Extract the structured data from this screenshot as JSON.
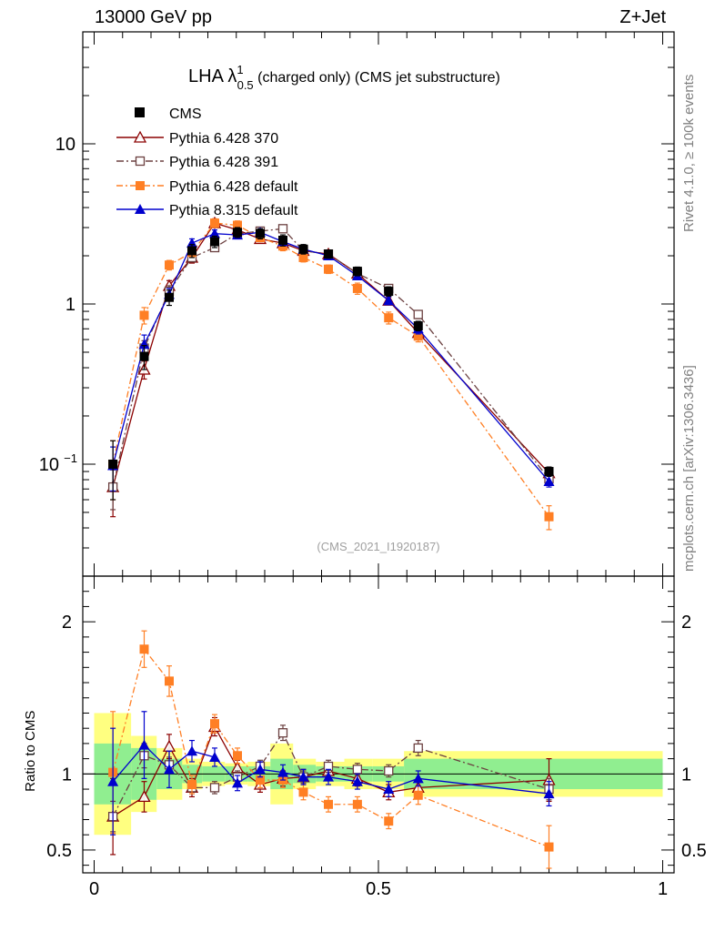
{
  "header": {
    "energy_label": "13000 GeV pp",
    "process_label": "Z+Jet"
  },
  "side_labels": {
    "rivet": "Rivet 4.1.0, ≥ 100k events",
    "mcplots": "mcplots.cern.ch [arXiv:1306.3436]"
  },
  "chart_data": {
    "type": "line",
    "title_main": "LHA λ",
    "title_sup": "1",
    "title_sub": "0.5",
    "title_rest": " (charged only) (CMS jet substructure)",
    "watermark": "(CMS_2021_I1920187)",
    "yscale": "log",
    "ylim": [
      0.02,
      50
    ],
    "xlim": [
      -0.02,
      1.02
    ],
    "ytick_labels": {
      "major_10": "10",
      "major_1": "1",
      "major_01": "10",
      "major_01_exp": "−1"
    },
    "ratio_ylabel": "Ratio to CMS",
    "ratio_ylim": [
      0.35,
      2.3
    ],
    "ratio_ticks": [
      "0.5",
      "1",
      "2"
    ],
    "xtick_labels": [
      "0",
      "0.5",
      "1"
    ],
    "x_centers": [
      0.033,
      0.088,
      0.132,
      0.172,
      0.212,
      0.252,
      0.292,
      0.332,
      0.368,
      0.412,
      0.463,
      0.518,
      0.57,
      0.8
    ],
    "x_edges": [
      0.0,
      0.065,
      0.11,
      0.155,
      0.19,
      0.23,
      0.27,
      0.31,
      0.35,
      0.39,
      0.44,
      0.49,
      0.545,
      0.6,
      1.0
    ],
    "data": {
      "name": "CMS",
      "values": [
        0.1,
        0.47,
        1.1,
        2.15,
        2.45,
        2.8,
        2.75,
        2.5,
        2.2,
        2.05,
        1.6,
        1.2,
        0.73,
        0.09
      ],
      "errors": [
        0.04,
        0.08,
        0.12,
        0.2,
        0.2,
        0.2,
        0.2,
        0.2,
        0.15,
        0.12,
        0.1,
        0.08,
        0.05,
        0.006
      ]
    },
    "ratio_bands": {
      "yellow_halfwidth": [
        0.4,
        0.25,
        0.17,
        0.1,
        0.08,
        0.07,
        0.08,
        0.2,
        0.1,
        0.08,
        0.1,
        0.1,
        0.15,
        0.15
      ],
      "green_halfwidth": [
        0.2,
        0.17,
        0.1,
        0.06,
        0.05,
        0.05,
        0.05,
        0.1,
        0.06,
        0.05,
        0.05,
        0.05,
        0.1,
        0.1
      ]
    },
    "series": [
      {
        "name": "Pythia 6.428 370",
        "color": "#8b0000",
        "marker": "triangle-open",
        "dash": "",
        "values": [
          0.072,
          0.39,
          1.3,
          1.95,
          3.2,
          2.9,
          2.55,
          2.4,
          2.15,
          2.05,
          1.55,
          1.05,
          0.66,
          0.088
        ],
        "errors": [
          0.025,
          0.05,
          0.1,
          0.15,
          0.2,
          0.2,
          0.15,
          0.15,
          0.12,
          0.1,
          0.08,
          0.06,
          0.04,
          0.005
        ],
        "ratio": [
          0.72,
          0.85,
          1.18,
          0.91,
          1.31,
          1.04,
          0.93,
          0.97,
          0.98,
          1.02,
          0.97,
          0.88,
          0.91,
          0.96
        ],
        "ratio_err": [
          0.25,
          0.1,
          0.08,
          0.06,
          0.06,
          0.05,
          0.05,
          0.05,
          0.05,
          0.05,
          0.05,
          0.05,
          0.05,
          0.14
        ]
      },
      {
        "name": "Pythia 6.428 391",
        "color": "#6b4040",
        "marker": "square-open",
        "dash": "8,3,2,3",
        "values": [
          0.072,
          0.53,
          1.2,
          1.95,
          2.25,
          2.75,
          2.85,
          2.95,
          2.15,
          2.05,
          1.55,
          1.25,
          0.86,
          0.081
        ],
        "errors": [
          0.02,
          0.06,
          0.1,
          0.12,
          0.12,
          0.15,
          0.15,
          0.15,
          0.1,
          0.1,
          0.08,
          0.06,
          0.05,
          0.006
        ],
        "ratio": [
          0.72,
          1.12,
          1.06,
          0.91,
          0.91,
          0.98,
          1.05,
          1.27,
          0.98,
          1.05,
          1.03,
          1.02,
          1.17,
          0.9
        ],
        "ratio_err": [
          0.1,
          0.08,
          0.05,
          0.04,
          0.04,
          0.04,
          0.04,
          0.05,
          0.04,
          0.04,
          0.04,
          0.04,
          0.05,
          0.07
        ]
      },
      {
        "name": "Pythia 6.428 default",
        "color": "#ff7f24",
        "marker": "square-filled",
        "dash": "7,3,2,3",
        "values": [
          0.1,
          0.85,
          1.75,
          2.1,
          3.2,
          3.1,
          2.6,
          2.3,
          1.95,
          1.65,
          1.25,
          0.82,
          0.63,
          0.047
        ],
        "errors": [
          0.04,
          0.1,
          0.12,
          0.15,
          0.2,
          0.2,
          0.15,
          0.15,
          0.12,
          0.1,
          0.1,
          0.07,
          0.05,
          0.008
        ],
        "ratio": [
          1.01,
          1.82,
          1.61,
          0.93,
          1.33,
          1.12,
          0.96,
          0.96,
          0.88,
          0.8,
          0.8,
          0.69,
          0.86,
          0.52
        ],
        "ratio_err": [
          0.4,
          0.12,
          0.1,
          0.06,
          0.06,
          0.05,
          0.05,
          0.05,
          0.05,
          0.05,
          0.05,
          0.05,
          0.06,
          0.14
        ]
      },
      {
        "name": "Pythia 8.315 default",
        "color": "#0000cd",
        "marker": "triangle-filled",
        "dash": "",
        "values": [
          0.098,
          0.56,
          1.15,
          2.4,
          2.75,
          2.7,
          2.8,
          2.45,
          2.2,
          2.0,
          1.5,
          1.05,
          0.7,
          0.078
        ],
        "errors": [
          0.03,
          0.08,
          0.1,
          0.15,
          0.15,
          0.15,
          0.15,
          0.12,
          0.1,
          0.1,
          0.08,
          0.06,
          0.05,
          0.006
        ],
        "ratio": [
          0.95,
          1.19,
          1.03,
          1.15,
          1.11,
          0.94,
          1.03,
          1.01,
          0.98,
          0.98,
          0.95,
          0.9,
          0.97,
          0.87
        ],
        "ratio_err": [
          0.35,
          0.22,
          0.12,
          0.07,
          0.06,
          0.05,
          0.05,
          0.05,
          0.05,
          0.05,
          0.05,
          0.05,
          0.05,
          0.08
        ]
      }
    ]
  }
}
